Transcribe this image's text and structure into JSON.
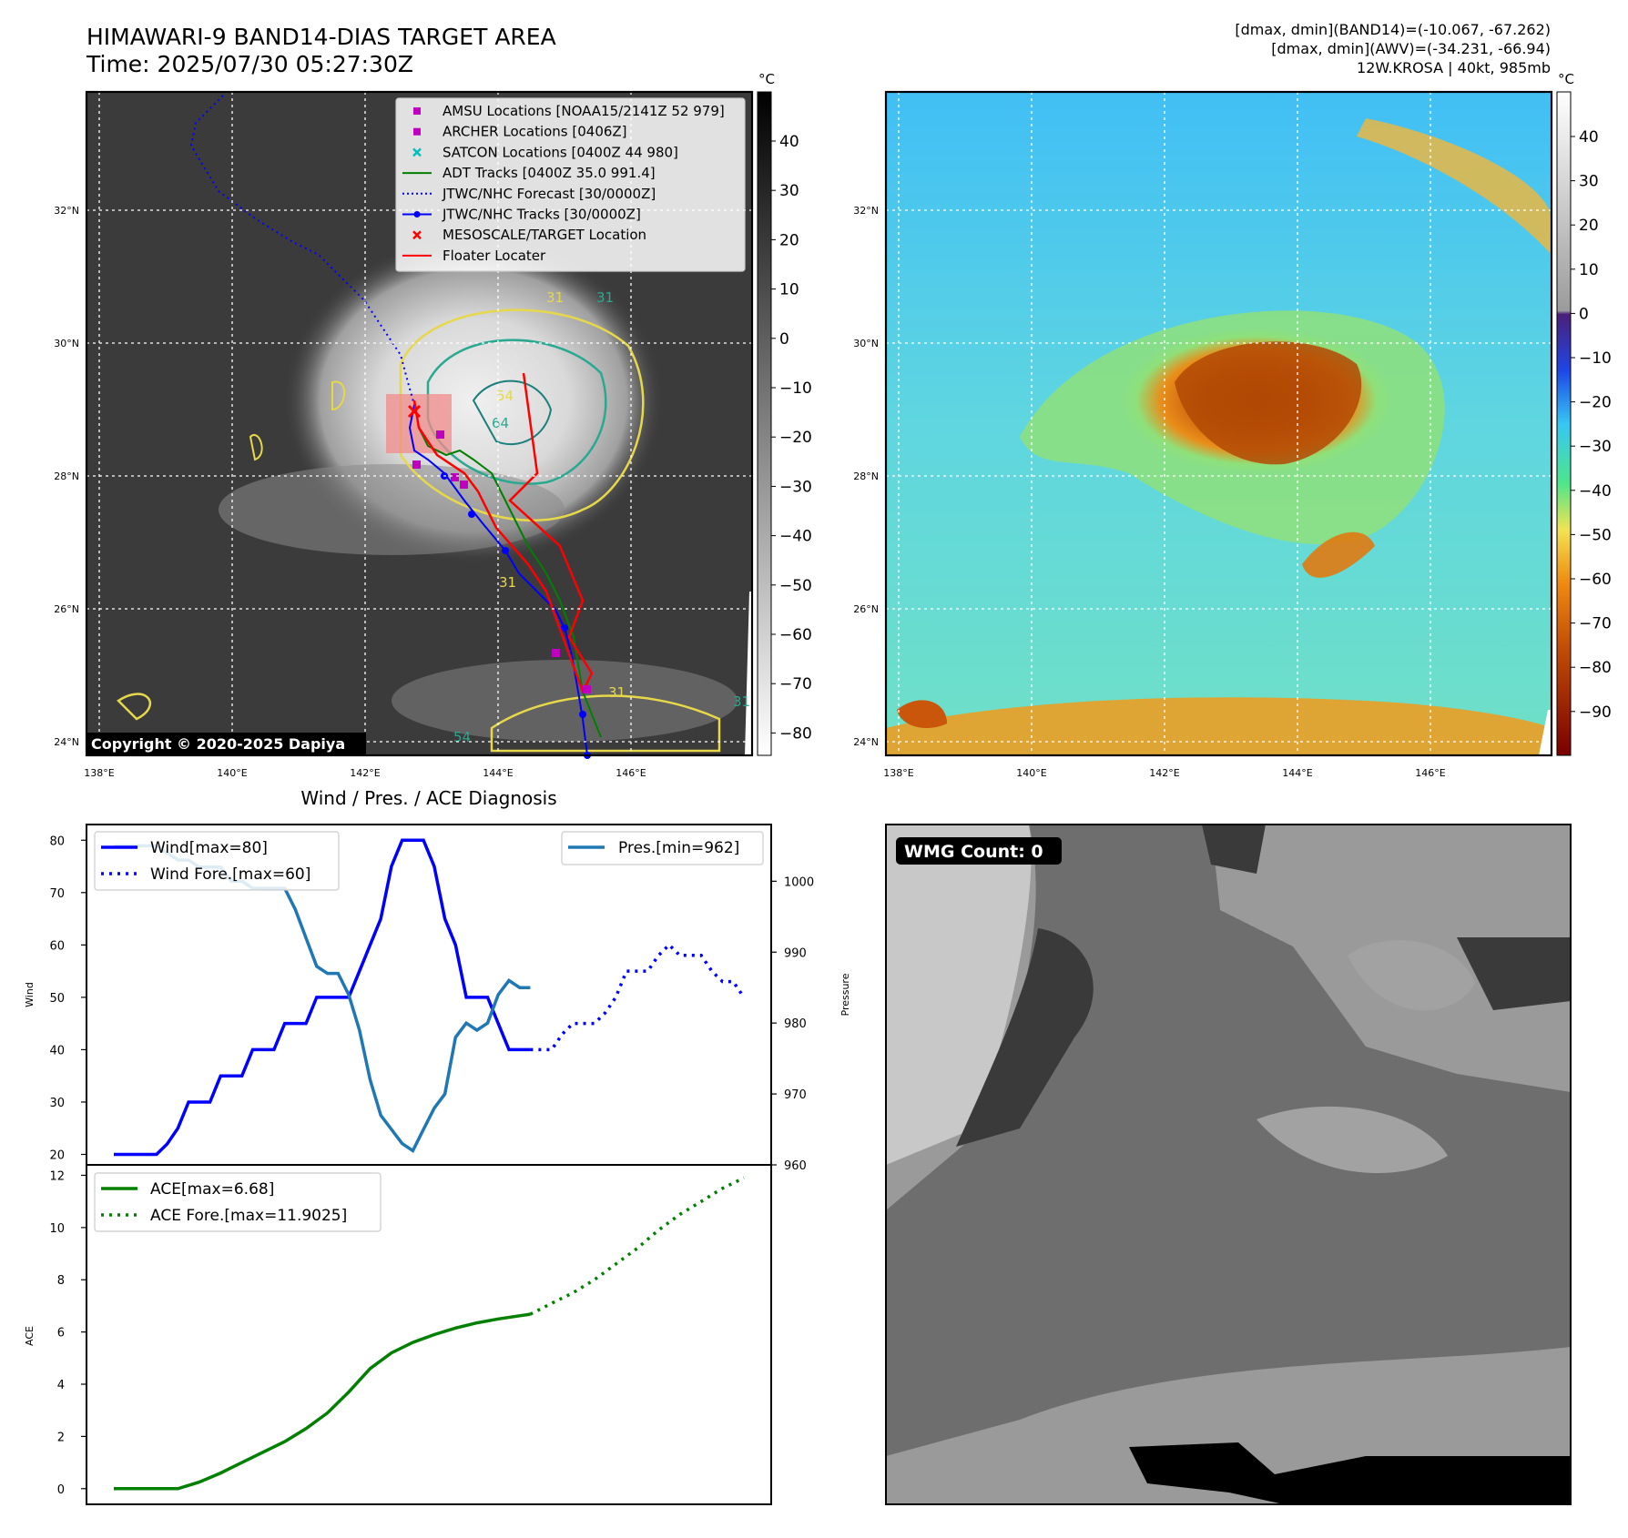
{
  "header": {
    "title_line1": "HIMAWARI-9 BAND14-DIAS TARGET AREA",
    "title_line2": "Time: 2025/07/30 05:27:30Z",
    "info_line1": "[dmax, dmin](BAND14)=(-10.067, -67.262)",
    "info_line2": "[dmax, dmin](AWV)=(-34.231, -66.94)",
    "info_line3": "12W.KROSA | 40kt, 985mb"
  },
  "map_ir": {
    "lat_labels": [
      "32°N",
      "30°N",
      "28°N",
      "26°N",
      "24°N"
    ],
    "lon_labels": [
      "138°E",
      "140°E",
      "142°E",
      "144°E",
      "146°E"
    ],
    "colorbar_unit": "°C",
    "colorbar_ticks": [
      "40",
      "30",
      "20",
      "10",
      "0",
      "−10",
      "−20",
      "−30",
      "−40",
      "−50",
      "−60",
      "−70",
      "−80"
    ],
    "copyright": "Copyright © 2020-2025 Dapiya",
    "contour_labels": [
      "31",
      "31",
      "54",
      "64",
      "31",
      "54",
      "31",
      "31"
    ],
    "legend": [
      {
        "label": "AMSU Locations [NOAA15/2141Z 52 979]",
        "color": "#bf00bf",
        "marker": "square"
      },
      {
        "label": "ARCHER Locations [0406Z]",
        "color": "#bf00bf",
        "marker": "square"
      },
      {
        "label": "SATCON Locations [0400Z 44 980]",
        "color": "#00bfbf",
        "marker": "x"
      },
      {
        "label": "ADT Tracks [0400Z 35.0 991.4]",
        "color": "#008000",
        "marker": "line"
      },
      {
        "label": "JTWC/NHC Forecast [30/0000Z]",
        "color": "#0000ff",
        "marker": "dotted"
      },
      {
        "label": "JTWC/NHC Tracks [30/0000Z]",
        "color": "#0000ff",
        "marker": "line-dot"
      },
      {
        "label": "MESOSCALE/TARGET Location",
        "color": "#ff0000",
        "marker": "x"
      },
      {
        "label": "Floater Locater",
        "color": "#ff0000",
        "marker": "line"
      }
    ]
  },
  "map_awv": {
    "lat_labels": [
      "32°N",
      "30°N",
      "28°N",
      "26°N",
      "24°N"
    ],
    "lon_labels": [
      "138°E",
      "140°E",
      "142°E",
      "144°E",
      "146°E"
    ],
    "colorbar_unit": "°C",
    "colorbar_ticks": [
      "40",
      "30",
      "20",
      "10",
      "0",
      "−10",
      "−20",
      "−30",
      "−40",
      "−50",
      "−60",
      "−70",
      "−80",
      "−90"
    ]
  },
  "wmg": {
    "label": "WMG Count: 0"
  },
  "chart_data": [
    {
      "type": "line",
      "title": "Wind / Pres. / ACE Diagnosis",
      "ylabel": "Wind",
      "ylim": [
        18,
        83
      ],
      "yticks": [
        "20",
        "30",
        "40",
        "50",
        "60",
        "70",
        "80"
      ],
      "y2label": "Pressure",
      "y2lim": [
        960,
        1008
      ],
      "y2ticks": [
        "960",
        "970",
        "980",
        "990",
        "1000"
      ],
      "x": [
        0,
        1,
        2,
        3,
        4,
        5,
        6,
        7,
        8,
        9,
        10,
        11,
        12,
        13,
        14,
        15,
        16,
        17,
        18,
        19,
        20,
        21,
        22,
        23,
        24,
        25,
        26,
        27,
        28,
        29,
        30,
        31,
        32,
        33,
        34,
        35,
        36,
        37,
        38,
        39,
        40,
        41,
        42,
        43,
        44,
        45,
        46,
        47,
        48,
        49,
        50,
        51,
        52,
        53,
        54,
        55,
        56,
        57,
        58,
        59
      ],
      "series": [
        {
          "name": "Wind[max=80]",
          "color": "#0000ff",
          "style": "solid",
          "x": [
            0,
            1,
            2,
            3,
            4,
            5,
            6,
            7,
            8,
            9,
            10,
            11,
            12,
            13,
            14,
            15,
            16,
            17,
            18,
            19,
            20,
            21,
            22,
            23,
            24,
            25,
            26,
            27,
            28,
            29,
            30,
            31,
            32,
            33,
            34,
            35,
            36,
            37,
            38,
            39
          ],
          "values": [
            20,
            20,
            20,
            20,
            20,
            22,
            25,
            30,
            30,
            30,
            35,
            35,
            35,
            40,
            40,
            40,
            45,
            45,
            45,
            50,
            50,
            50,
            50,
            55,
            60,
            65,
            75,
            80,
            80,
            80,
            75,
            65,
            60,
            50,
            50,
            50,
            45,
            40,
            40,
            40
          ]
        },
        {
          "name": "Wind Fore.[max=60]",
          "color": "#0000ff",
          "style": "dotted",
          "x": [
            39,
            40,
            41,
            42,
            43,
            44,
            45,
            46,
            47,
            48,
            49,
            50,
            51,
            52,
            53,
            54,
            55,
            56,
            57,
            58,
            59
          ],
          "values": [
            40,
            40,
            40,
            43,
            45,
            45,
            45,
            47,
            50,
            55,
            55,
            55,
            58,
            60,
            58,
            58,
            58,
            55,
            53,
            53,
            50
          ]
        },
        {
          "name": "Pres.[min=962]",
          "color": "#1f77b4",
          "style": "solid",
          "axis": "y2",
          "x": [
            0,
            1,
            2,
            3,
            4,
            5,
            6,
            7,
            8,
            9,
            10,
            11,
            12,
            13,
            14,
            15,
            16,
            17,
            18,
            19,
            20,
            21,
            22,
            23,
            24,
            25,
            26,
            27,
            28,
            29,
            30,
            31,
            32,
            33,
            34,
            35,
            36,
            37,
            38,
            39
          ],
          "values": [
            1005,
            1005,
            1005,
            1005,
            1005,
            1004,
            1003,
            1003,
            1002,
            1002,
            1002,
            1000,
            1000,
            999,
            999,
            999,
            999,
            996,
            992,
            988,
            987,
            987,
            984,
            979,
            972,
            967,
            965,
            963,
            962,
            965,
            968,
            970,
            978,
            980,
            979,
            980,
            984,
            986,
            985,
            985
          ]
        }
      ]
    },
    {
      "type": "line",
      "ylabel": "ACE",
      "ylim": [
        -0.6,
        12.4
      ],
      "yticks": [
        "0",
        "2",
        "4",
        "6",
        "8",
        "10",
        "12"
      ],
      "series": [
        {
          "name": "ACE[max=6.68]",
          "color": "#008000",
          "style": "solid",
          "x": [
            0,
            2,
            4,
            6,
            8,
            10,
            12,
            14,
            16,
            18,
            20,
            22,
            24,
            26,
            28,
            30,
            32,
            34,
            36,
            38,
            39
          ],
          "values": [
            0,
            0,
            0,
            0,
            0.25,
            0.6,
            1.0,
            1.4,
            1.8,
            2.3,
            2.9,
            3.7,
            4.6,
            5.2,
            5.6,
            5.9,
            6.15,
            6.35,
            6.5,
            6.62,
            6.68
          ]
        },
        {
          "name": "ACE Fore.[max=11.9025]",
          "color": "#008000",
          "style": "dotted",
          "x": [
            39,
            41,
            43,
            45,
            47,
            49,
            51,
            53,
            55,
            57,
            59
          ],
          "values": [
            6.68,
            7.1,
            7.5,
            8.0,
            8.6,
            9.2,
            9.9,
            10.5,
            11.0,
            11.5,
            11.9
          ]
        }
      ]
    }
  ]
}
